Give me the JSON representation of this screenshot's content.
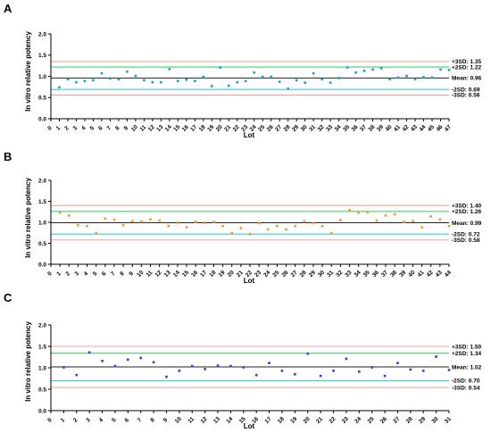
{
  "colors": {
    "red_line": "#f4a0a0",
    "green_line": "#3fcf6a",
    "mean_line": "#222222",
    "cyan_line": "#35cfcf",
    "axis": "#000000"
  },
  "chart_data": [
    {
      "panel": "A",
      "type": "scatter",
      "xlabel": "Lot",
      "ylabel": "In vitro relative potency",
      "ylim": [
        0,
        2.0
      ],
      "yticks": [
        "0.0",
        "0.5",
        "1.0",
        "1.5",
        "2.0"
      ],
      "x_range": [
        0,
        47
      ],
      "point_color": "#1f9fc4",
      "x": [
        1,
        2,
        3,
        4,
        5,
        6,
        7,
        8,
        9,
        10,
        11,
        12,
        13,
        14,
        15,
        16,
        17,
        18,
        19,
        20,
        21,
        22,
        23,
        24,
        25,
        26,
        27,
        28,
        29,
        30,
        31,
        32,
        33,
        34,
        35,
        36,
        37,
        38,
        39,
        40,
        41,
        42,
        43,
        44,
        45,
        46,
        47
      ],
      "values": [
        0.74,
        0.93,
        0.86,
        0.89,
        0.91,
        1.07,
        0.95,
        0.93,
        1.11,
        1.01,
        0.91,
        0.86,
        0.86,
        1.17,
        0.89,
        0.92,
        0.89,
        0.99,
        0.77,
        1.21,
        0.78,
        0.86,
        0.89,
        1.09,
        0.99,
        0.99,
        0.87,
        0.71,
        0.91,
        0.85,
        1.07,
        0.93,
        0.85,
        0.96,
        1.21,
        1.09,
        1.13,
        1.16,
        1.19,
        0.93,
        0.97,
        1.01,
        0.93,
        0.98,
        0.97,
        1.16,
        1.15
      ],
      "reference_lines": [
        {
          "label": "+3SD: 1.35",
          "value": 1.35,
          "color": "red"
        },
        {
          "label": "+2SD: 1.22",
          "value": 1.22,
          "color": "green"
        },
        {
          "label": "Mean: 0.96",
          "value": 0.96,
          "color": "mean"
        },
        {
          "label": "-2SD: 0.69",
          "value": 0.69,
          "color": "cyan"
        },
        {
          "label": "-3SD: 0.56",
          "value": 0.56,
          "color": "red"
        }
      ]
    },
    {
      "panel": "B",
      "type": "scatter",
      "xlabel": "Lot",
      "ylabel": "In vitro relative potency",
      "ylim": [
        0,
        2.0
      ],
      "yticks": [
        "0.0",
        "0.5",
        "1.0",
        "1.5",
        "2.0"
      ],
      "x_range": [
        0,
        44
      ],
      "point_color": "#f29a2e",
      "x": [
        1,
        2,
        3,
        4,
        5,
        6,
        7,
        8,
        9,
        10,
        11,
        12,
        13,
        14,
        15,
        16,
        17,
        18,
        19,
        20,
        21,
        22,
        23,
        24,
        25,
        26,
        27,
        28,
        29,
        30,
        31,
        32,
        33,
        34,
        35,
        36,
        37,
        38,
        39,
        40,
        41,
        42,
        43,
        44
      ],
      "values": [
        1.23,
        1.16,
        0.93,
        0.91,
        0.74,
        1.09,
        1.06,
        0.93,
        1.03,
        1.02,
        1.07,
        1.04,
        0.91,
        0.99,
        0.88,
        1.01,
        0.99,
        1.01,
        0.91,
        0.74,
        0.86,
        0.72,
        0.98,
        0.83,
        0.91,
        0.83,
        0.91,
        1.02,
        0.98,
        0.91,
        0.74,
        1.05,
        1.29,
        1.23,
        1.24,
        1.04,
        1.16,
        1.19,
        1.01,
        1.03,
        0.88,
        1.14,
        1.07,
        0.91
      ],
      "reference_lines": [
        {
          "label": "+3SD: 1.40",
          "value": 1.4,
          "color": "red"
        },
        {
          "label": "+2SD: 1.26",
          "value": 1.26,
          "color": "green"
        },
        {
          "label": "Mean: 0.99",
          "value": 0.99,
          "color": "mean"
        },
        {
          "label": "-2SD: 0.72",
          "value": 0.72,
          "color": "cyan"
        },
        {
          "label": "-3SD: 0.58",
          "value": 0.58,
          "color": "red"
        }
      ]
    },
    {
      "panel": "C",
      "type": "scatter",
      "xlabel": "Lot",
      "ylabel": "In vitro relative potency",
      "ylim": [
        0,
        2.0
      ],
      "yticks": [
        "0.0",
        "0.5",
        "1.0",
        "1.5",
        "2.0"
      ],
      "x_range": [
        0,
        31
      ],
      "point_color": "#2f3fd8",
      "x": [
        1,
        2,
        3,
        4,
        5,
        6,
        7,
        8,
        9,
        10,
        11,
        12,
        13,
        14,
        15,
        16,
        17,
        18,
        19,
        20,
        21,
        22,
        23,
        24,
        25,
        26,
        27,
        28,
        29,
        30,
        31
      ],
      "values": [
        1.01,
        0.83,
        1.36,
        1.16,
        1.04,
        1.19,
        1.23,
        1.13,
        0.79,
        0.93,
        1.04,
        0.97,
        1.05,
        1.04,
        1.01,
        0.83,
        1.11,
        0.93,
        0.85,
        1.33,
        0.81,
        0.93,
        1.21,
        0.91,
        1.01,
        0.81,
        1.11,
        0.96,
        0.93,
        1.26,
        0.95
      ],
      "reference_lines": [
        {
          "label": "+3SD: 1.50",
          "value": 1.5,
          "color": "red"
        },
        {
          "label": "+2SD: 1.34",
          "value": 1.34,
          "color": "green"
        },
        {
          "label": "Mean: 1.02",
          "value": 1.02,
          "color": "mean"
        },
        {
          "label": "-2SD: 0.70",
          "value": 0.7,
          "color": "cyan"
        },
        {
          "label": "-3SD: 0.54",
          "value": 0.54,
          "color": "red"
        }
      ]
    }
  ]
}
